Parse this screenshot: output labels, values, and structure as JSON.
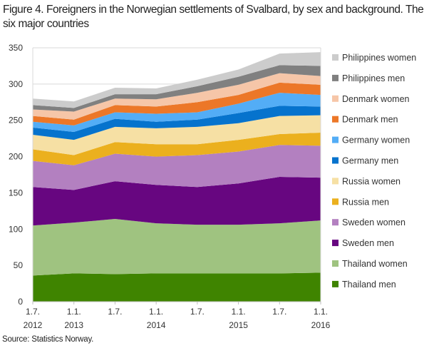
{
  "chart_data": {
    "type": "area",
    "stacked": true,
    "title": "Figure 4. Foreigners in the Norwegian settlements of Svalbard, by sex and background. The six major countries",
    "source": "Source: Statistics Norway.",
    "x_labels": [
      [
        "1.7.",
        "2012"
      ],
      [
        "1.1.",
        "2013"
      ],
      [
        "1.7.",
        ""
      ],
      [
        "1.1.",
        "2014"
      ],
      [
        "1.7.",
        ""
      ],
      [
        "1.1.",
        "2015"
      ],
      [
        "1.7.",
        ""
      ],
      [
        "1.1.",
        "2016"
      ]
    ],
    "ylim": [
      0,
      350
    ],
    "yticks": [
      0,
      50,
      100,
      150,
      200,
      250,
      300,
      350
    ],
    "grid": true,
    "legend_position": "right",
    "series": [
      {
        "name": "Thailand men",
        "color": "#3f8400",
        "values": [
          36,
          39,
          38,
          39,
          39,
          39,
          39,
          40
        ]
      },
      {
        "name": "Thailand women",
        "color": "#9fc380",
        "values": [
          69,
          70,
          76,
          69,
          67,
          67,
          69,
          72
        ]
      },
      {
        "name": "Sweden men",
        "color": "#670680",
        "values": [
          53,
          45,
          52,
          53,
          52,
          57,
          64,
          59
        ]
      },
      {
        "name": "Sweden women",
        "color": "#b380c0",
        "values": [
          36,
          34,
          38,
          39,
          44,
          44,
          44,
          44
        ]
      },
      {
        "name": "Russia men",
        "color": "#ebb01e",
        "values": [
          16,
          14,
          16,
          17,
          15,
          16,
          15,
          18
        ]
      },
      {
        "name": "Russia women",
        "color": "#f6e0a4",
        "values": [
          20,
          21,
          21,
          22,
          24,
          23,
          25,
          24
        ]
      },
      {
        "name": "Germany men",
        "color": "#0673cd",
        "values": [
          10,
          11,
          11,
          9,
          10,
          14,
          14,
          12
        ]
      },
      {
        "name": "Germany women",
        "color": "#53adf6",
        "values": [
          8,
          9,
          9,
          11,
          10,
          13,
          18,
          16
        ]
      },
      {
        "name": "Denmark men",
        "color": "#ec7728",
        "values": [
          8,
          8,
          10,
          10,
          14,
          12,
          14,
          14
        ]
      },
      {
        "name": "Denmark women",
        "color": "#f6c6a8",
        "values": [
          9,
          11,
          9,
          10,
          13,
          14,
          13,
          12
        ]
      },
      {
        "name": "Philippines men",
        "color": "#808080",
        "values": [
          6,
          5,
          6,
          7,
          9,
          11,
          11,
          14
        ]
      },
      {
        "name": "Philippines women",
        "color": "#cccccc",
        "values": [
          9,
          9,
          9,
          8,
          9,
          10,
          16,
          19
        ]
      }
    ]
  }
}
